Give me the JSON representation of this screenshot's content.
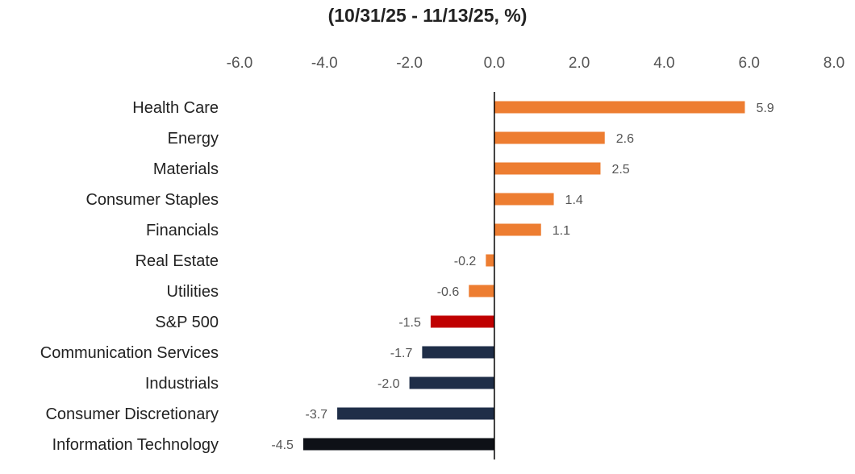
{
  "chart_data": {
    "type": "bar",
    "orientation": "horizontal",
    "title": "(10/31/25 - 11/13/25, %)",
    "xlim": [
      -6.0,
      8.0
    ],
    "xticks": [
      -6.0,
      -4.0,
      -2.0,
      0.0,
      2.0,
      4.0,
      6.0,
      8.0
    ],
    "tick_labels": [
      "-6.0",
      "-4.0",
      "-2.0",
      "0.0",
      "2.0",
      "4.0",
      "6.0",
      "8.0"
    ],
    "grid": false,
    "categories": [
      "Health Care",
      "Energy",
      "Materials",
      "Consumer Staples",
      "Financials",
      "Real Estate",
      "Utilities",
      "S&P 500",
      "Communication Services",
      "Industrials",
      "Consumer Discretionary",
      "Information Technology"
    ],
    "values": [
      5.9,
      2.6,
      2.5,
      1.4,
      1.1,
      -0.2,
      -0.6,
      -1.5,
      -1.7,
      -2.0,
      -3.7,
      -4.5
    ],
    "value_labels": [
      "5.9",
      "2.6",
      "2.5",
      "1.4",
      "1.1",
      "-0.2",
      "-0.6",
      "-1.5",
      "-1.7",
      "-2.0",
      "-3.7",
      "-4.5"
    ],
    "colors": [
      "#ED7D31",
      "#ED7D31",
      "#ED7D31",
      "#ED7D31",
      "#ED7D31",
      "#ED7D31",
      "#ED7D31",
      "#C00000",
      "#1F2E48",
      "#1F2E48",
      "#1F2E48",
      "#0E1117"
    ]
  }
}
